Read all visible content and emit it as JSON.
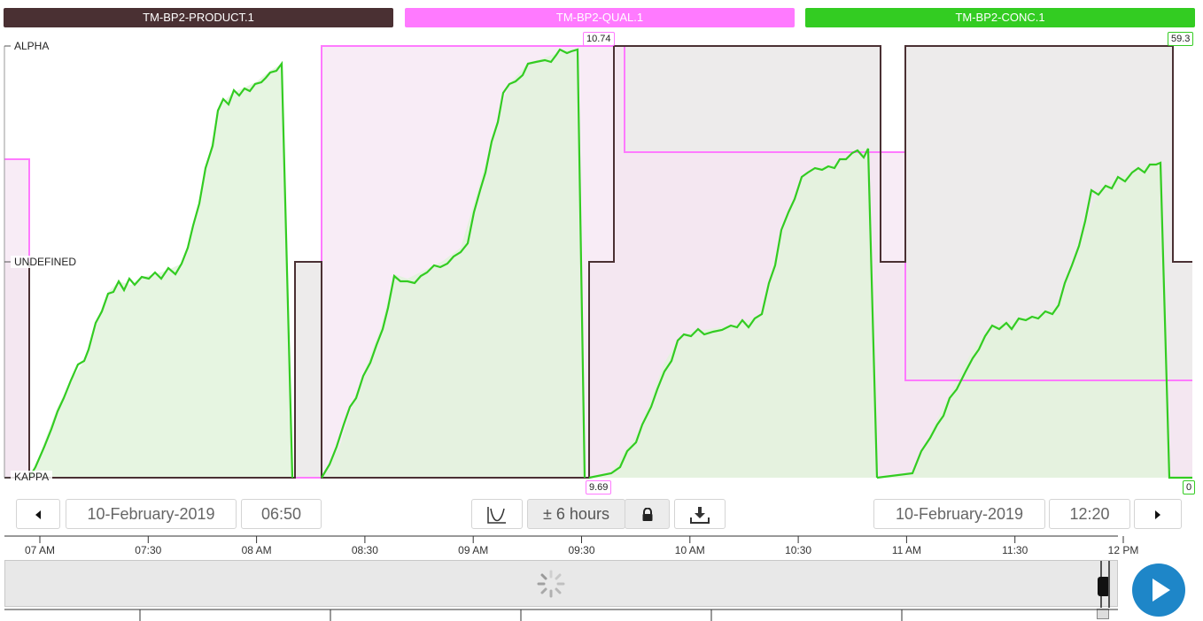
{
  "legend": [
    {
      "label": "TM-BP2-PRODUCT.1",
      "color": "#4a3033"
    },
    {
      "label": "TM-BP2-QUAL.1",
      "color": "#ff7aff"
    },
    {
      "label": "TM-BP2-CONC.1",
      "color": "#33cc22"
    }
  ],
  "axis": {
    "top": "ALPHA",
    "middle": "UNDEFINED",
    "bottom": "KAPPA"
  },
  "qual_tags": {
    "max": "10.74",
    "min": "9.69"
  },
  "conc_tags": {
    "max": "59.3",
    "min": "0"
  },
  "controls": {
    "start_date": "10-February-2019",
    "start_time": "06:50",
    "range": "± 6 hours",
    "end_date": "10-February-2019",
    "end_time": "12:20"
  },
  "icons": {
    "prev": "triangle-left-icon",
    "next": "triangle-right-icon",
    "curve": "curve-icon",
    "lock": "lock-icon",
    "download": "download-icon",
    "play": "play-icon",
    "spinner": "spinner-icon"
  },
  "timeline": {
    "ticks": [
      "07 AM",
      "07:30",
      "08 AM",
      "08:30",
      "09 AM",
      "09:30",
      "10 AM",
      "10:30",
      "11 AM",
      "11:30",
      "12 PM"
    ]
  }
}
